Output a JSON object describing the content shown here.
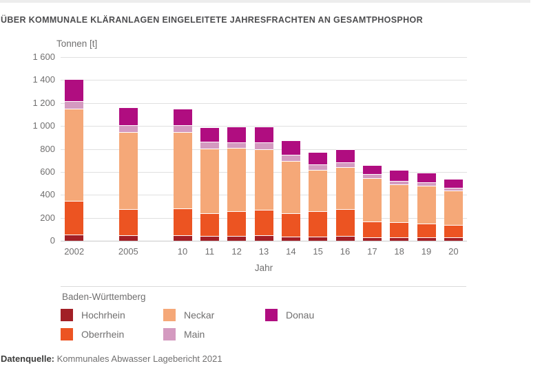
{
  "title": "ÜBER KOMMUNALE KLÄRANLAGEN EINGELEITETE JAHRESFRACHTEN AN GESAMTPHOSPHOR",
  "y_axis": {
    "label": "Tonnen [t]",
    "ticks": [
      {
        "label": "0",
        "value": 0
      },
      {
        "label": "200",
        "value": 200
      },
      {
        "label": "400",
        "value": 400
      },
      {
        "label": "600",
        "value": 600
      },
      {
        "label": "800",
        "value": 800
      },
      {
        "label": "1 000",
        "value": 1000
      },
      {
        "label": "1 200",
        "value": 1200
      },
      {
        "label": "1 400",
        "value": 1400
      },
      {
        "label": "1 600",
        "value": 1600
      }
    ]
  },
  "x_axis": {
    "label": "Jahr"
  },
  "legend": {
    "title": "Baden-Württemberg",
    "items": [
      {
        "label": "Hochrhein",
        "color": "#a21f26",
        "col": 0,
        "row": 0
      },
      {
        "label": "Oberrhein",
        "color": "#ec5422",
        "col": 0,
        "row": 1
      },
      {
        "label": "Neckar",
        "color": "#f5a878",
        "col": 1,
        "row": 0
      },
      {
        "label": "Main",
        "color": "#d49ac0",
        "col": 1,
        "row": 1
      },
      {
        "label": "Donau",
        "color": "#b00d80",
        "col": 2,
        "row": 0
      }
    ]
  },
  "source": {
    "label": "Datenquelle:",
    "text": "Kommunales Abwasser Lagebericht 2021"
  },
  "colors": {
    "hochrhein": "#a21f26",
    "oberrhein": "#ec5422",
    "neckar": "#f5a878",
    "main": "#d49ac0",
    "donau": "#b00d80",
    "grid": "#e0e0e0",
    "text_gray": "#706f6f",
    "title_gray": "#4d4d4f"
  },
  "chart_data": {
    "type": "bar",
    "stacked": true,
    "title": "ÜBER KOMMUNALE KLÄRANLAGEN EINGELEITETE JAHRESFRACHTEN AN GESAMTPHOSPHOR",
    "xlabel": "Jahr",
    "ylabel": "Tonnen [t]",
    "ylim": [
      0,
      1600
    ],
    "ytick_step": 200,
    "grid": true,
    "legend_position": "bottom",
    "categories": [
      "2002",
      "2005",
      "10",
      "11",
      "12",
      "13",
      "14",
      "15",
      "16",
      "17",
      "18",
      "19",
      "20"
    ],
    "slots": [
      0,
      2,
      4,
      5,
      6,
      7,
      8,
      9,
      10,
      11,
      12,
      13,
      14
    ],
    "total_slots": 15,
    "series": [
      {
        "name": "Hochrhein",
        "color": "#a21f26",
        "values": [
          50,
          40,
          40,
          35,
          35,
          45,
          30,
          30,
          35,
          25,
          25,
          25,
          25
        ]
      },
      {
        "name": "Oberrhein",
        "color": "#ec5422",
        "values": [
          285,
          225,
          230,
          190,
          210,
          210,
          200,
          215,
          230,
          130,
          125,
          110,
          100
        ]
      },
      {
        "name": "Neckar",
        "color": "#f5a878",
        "values": [
          795,
          665,
          660,
          560,
          545,
          525,
          450,
          355,
          360,
          370,
          325,
          325,
          295
        ]
      },
      {
        "name": "Main",
        "color": "#d49ac0",
        "values": [
          60,
          50,
          55,
          55,
          45,
          55,
          45,
          40,
          35,
          30,
          25,
          25,
          15
        ]
      },
      {
        "name": "Donau",
        "color": "#b00d80",
        "values": [
          190,
          155,
          135,
          120,
          130,
          130,
          120,
          105,
          110,
          75,
          85,
          80,
          75
        ]
      }
    ],
    "totals": [
      1380,
      1135,
      1120,
      960,
      965,
      965,
      845,
      745,
      770,
      630,
      585,
      565,
      510
    ]
  }
}
